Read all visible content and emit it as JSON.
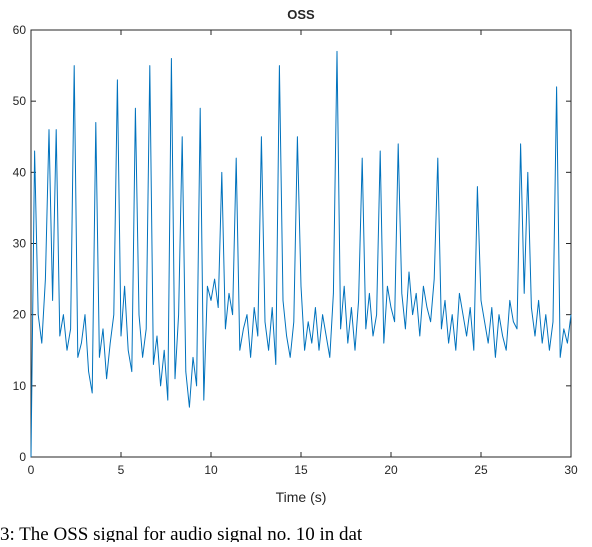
{
  "chart_data": {
    "type": "line",
    "title": "OSS",
    "xlabel": "Time (s)",
    "caption": "3: The OSS signal for audio signal no. 10 in dat",
    "x": [
      0,
      0.2,
      0.4,
      0.6,
      0.8,
      1,
      1.2,
      1.4,
      1.6,
      1.8,
      2,
      2.2,
      2.4,
      2.6,
      2.8,
      3,
      3.2,
      3.4,
      3.6,
      3.8,
      4,
      4.2,
      4.4,
      4.6,
      4.8,
      5,
      5.2,
      5.4,
      5.6,
      5.8,
      6,
      6.2,
      6.4,
      6.6,
      6.8,
      7,
      7.2,
      7.4,
      7.6,
      7.8,
      8,
      8.2,
      8.4,
      8.6,
      8.8,
      9,
      9.2,
      9.4,
      9.6,
      9.8,
      10,
      10.2,
      10.4,
      10.6,
      10.8,
      11,
      11.2,
      11.4,
      11.6,
      11.8,
      12,
      12.2,
      12.4,
      12.6,
      12.8,
      13,
      13.2,
      13.4,
      13.6,
      13.8,
      14,
      14.2,
      14.4,
      14.6,
      14.8,
      15,
      15.2,
      15.4,
      15.6,
      15.8,
      16,
      16.2,
      16.4,
      16.6,
      16.8,
      17,
      17.2,
      17.4,
      17.6,
      17.8,
      18,
      18.2,
      18.4,
      18.6,
      18.8,
      19,
      19.2,
      19.4,
      19.6,
      19.8,
      20,
      20.2,
      20.4,
      20.6,
      20.8,
      21,
      21.2,
      21.4,
      21.6,
      21.8,
      22,
      22.2,
      22.4,
      22.6,
      22.8,
      23,
      23.2,
      23.4,
      23.6,
      23.8,
      24,
      24.2,
      24.4,
      24.6,
      24.8,
      25,
      25.2,
      25.4,
      25.6,
      25.8,
      26,
      26.2,
      26.4,
      26.6,
      26.8,
      27,
      27.2,
      27.4,
      27.6,
      27.8,
      28,
      28.2,
      28.4,
      28.6,
      28.8,
      29,
      29.2,
      29.4,
      29.6,
      29.8,
      30
    ],
    "series": [
      {
        "color": "#0072bd",
        "values": [
          0,
          43,
          20,
          16,
          25,
          46,
          22,
          46,
          17,
          20,
          15,
          18,
          55,
          14,
          16,
          20,
          12,
          9,
          47,
          14,
          18,
          11,
          16,
          20,
          53,
          17,
          24,
          15,
          12,
          49,
          20,
          14,
          18,
          55,
          13,
          17,
          10,
          15,
          8,
          56,
          11,
          20,
          45,
          12,
          7,
          14,
          10,
          49,
          8,
          24,
          22,
          25,
          21,
          40,
          18,
          23,
          20,
          42,
          15,
          18,
          20,
          14,
          21,
          17,
          45,
          19,
          15,
          21,
          13,
          55,
          22,
          17,
          14,
          19,
          45,
          24,
          15,
          19,
          16,
          21,
          15,
          20,
          17,
          14,
          23,
          57,
          18,
          24,
          16,
          21,
          15,
          22,
          42,
          18,
          23,
          17,
          20,
          43,
          16,
          24,
          21,
          19,
          44,
          23,
          18,
          26,
          20,
          23,
          17,
          24,
          21,
          19,
          25,
          42,
          18,
          22,
          16,
          20,
          15,
          23,
          20,
          17,
          21,
          15,
          38,
          22,
          19,
          16,
          21,
          14,
          20,
          17,
          15,
          22,
          19,
          18,
          44,
          23,
          40,
          21,
          17,
          22,
          16,
          20,
          15,
          19,
          52,
          14,
          18,
          16,
          20
        ]
      }
    ],
    "xlim": [
      0,
      30
    ],
    "xticks": [
      0,
      5,
      10,
      15,
      20,
      25,
      30
    ],
    "ylim": [
      0,
      60
    ],
    "yticks": [
      0,
      10,
      20,
      30,
      40,
      50,
      60
    ]
  }
}
